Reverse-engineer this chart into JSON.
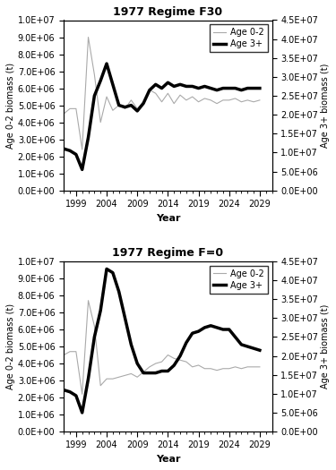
{
  "title1": "1977 Regime F30",
  "title2": "1977 Regime F=0",
  "xlabel": "Year",
  "ylabel_left": "Age 0-2 biomass (t)",
  "ylabel_right": "Age 3+ biomass (t)",
  "xticks": [
    1999,
    2004,
    2009,
    2014,
    2019,
    2024,
    2029
  ],
  "ylim_left": [
    0,
    10000000.0
  ],
  "ylim_right": [
    0,
    45000000.0
  ],
  "f30_years": [
    1997,
    1998,
    1999,
    2000,
    2001,
    2002,
    2003,
    2004,
    2005,
    2006,
    2007,
    2008,
    2009,
    2010,
    2011,
    2012,
    2013,
    2014,
    2015,
    2016,
    2017,
    2018,
    2019,
    2020,
    2021,
    2022,
    2023,
    2024,
    2025,
    2026,
    2027,
    2028,
    2029
  ],
  "f30_age02": [
    4500000,
    4800000,
    4800000,
    2400000,
    9000000,
    6800000,
    4000000,
    5500000,
    4700000,
    5000000,
    4800000,
    5300000,
    4800000,
    5200000,
    5900000,
    5700000,
    5200000,
    5700000,
    5100000,
    5600000,
    5300000,
    5500000,
    5200000,
    5400000,
    5300000,
    5100000,
    5300000,
    5300000,
    5400000,
    5200000,
    5300000,
    5200000,
    5300000
  ],
  "f30_age3p": [
    11000000,
    10500000,
    9500000,
    5500000,
    14000000,
    25000000,
    29000000,
    33500000,
    28000000,
    22500000,
    22000000,
    22500000,
    21000000,
    23000000,
    26500000,
    28000000,
    27000000,
    28500000,
    27500000,
    28000000,
    27500000,
    27500000,
    27000000,
    27500000,
    27000000,
    26500000,
    27000000,
    27000000,
    27000000,
    26500000,
    27000000,
    27000000,
    27000000
  ],
  "f0_years": [
    1997,
    1998,
    1999,
    2000,
    2001,
    2002,
    2003,
    2004,
    2005,
    2006,
    2007,
    2008,
    2009,
    2010,
    2011,
    2012,
    2013,
    2014,
    2015,
    2016,
    2017,
    2018,
    2019,
    2020,
    2021,
    2022,
    2023,
    2024,
    2025,
    2026,
    2027,
    2028,
    2029
  ],
  "f0_age02": [
    4500000,
    4700000,
    4700000,
    2200000,
    7700000,
    6200000,
    2700000,
    3100000,
    3100000,
    3200000,
    3300000,
    3400000,
    3200000,
    3500000,
    3800000,
    4000000,
    4100000,
    4500000,
    4300000,
    4200000,
    4100000,
    3800000,
    3900000,
    3700000,
    3700000,
    3600000,
    3700000,
    3700000,
    3800000,
    3700000,
    3800000,
    3800000,
    3800000
  ],
  "f0_age3p": [
    11000000,
    10500000,
    9500000,
    5000000,
    14000000,
    25000000,
    32000000,
    43000000,
    42000000,
    37000000,
    30000000,
    23000000,
    18000000,
    15500000,
    15500000,
    15500000,
    16000000,
    16000000,
    17500000,
    20000000,
    23500000,
    26000000,
    26500000,
    27500000,
    28000000,
    27500000,
    27000000,
    27000000,
    25000000,
    23000000,
    22500000,
    22000000,
    21500000
  ],
  "color_age02": "#aaaaaa",
  "color_age3p": "#000000",
  "lw_age02": 0.8,
  "lw_age3p": 2.5,
  "legend_age02": "Age 0-2",
  "legend_age3p": "Age 3+"
}
